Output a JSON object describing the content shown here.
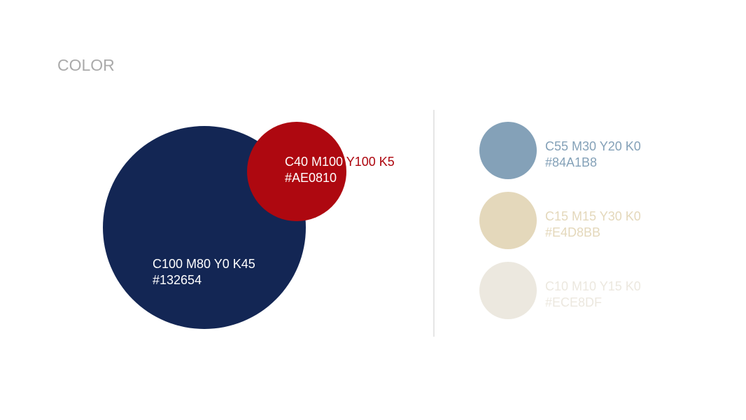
{
  "title": "COLOR",
  "primary": [
    {
      "cmyk": "C100 M80 Y0 K45",
      "hex": "#132654",
      "color": "#132654",
      "text_color": "#ffffff"
    },
    {
      "cmyk": "C40 M100 Y100 K5",
      "hex": "#AE0810",
      "color": "#AE0810",
      "text_color": "#ffffff",
      "overflow_text_color": "#AE0810"
    }
  ],
  "secondary": [
    {
      "cmyk": "C55 M30 Y20 K0",
      "hex": "#84A1B8",
      "color": "#84A1B8"
    },
    {
      "cmyk": "C15 M15 Y30 K0",
      "hex": "#E4D8BB",
      "color": "#E4D8BB"
    },
    {
      "cmyk": "C10 M10 Y15 K0",
      "hex": "#ECE8DF",
      "color": "#ECE8DF"
    }
  ],
  "colors": {
    "title": "#aaaaaa",
    "divider": "#cccccc"
  }
}
